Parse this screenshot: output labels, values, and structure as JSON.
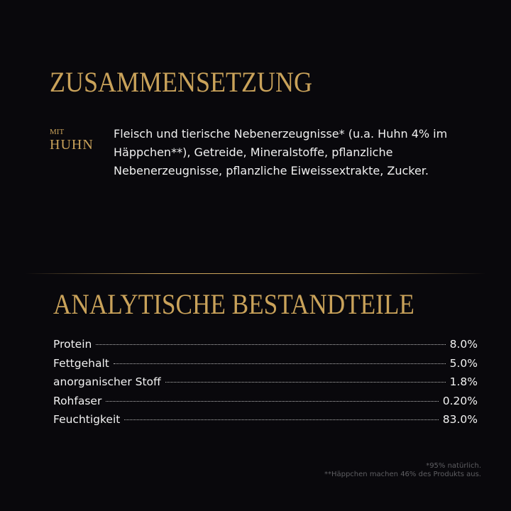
{
  "composition": {
    "title": "ZUSAMMENSETZUNG",
    "label_small": "MIT",
    "label_large": "HUHN",
    "text": "Fleisch und tierische Nebenerzeugnisse* (u.a. Huhn 4% im Häppchen**), Getreide, Mineralstoffe, pflanzliche Nebenerzeugnisse, pflanzliche Eiweissextrakte, Zucker."
  },
  "analysis": {
    "title": "ANALYTISCHE BESTANDTEILE",
    "rows": [
      {
        "name": "Protein",
        "value": "8.0%"
      },
      {
        "name": "Fettgehalt",
        "value": "5.0%"
      },
      {
        "name": "anorganischer Stoff",
        "value": "1.8%"
      },
      {
        "name": "Rohfaser",
        "value": "0.20%"
      },
      {
        "name": "Feuchtigkeit",
        "value": "83.0%"
      }
    ]
  },
  "footnotes": [
    "*95% natürlich.",
    "**Häppchen machen 46% des Produkts aus."
  ],
  "colors": {
    "background": "#09080c",
    "gold": "#c9a25a"
  }
}
